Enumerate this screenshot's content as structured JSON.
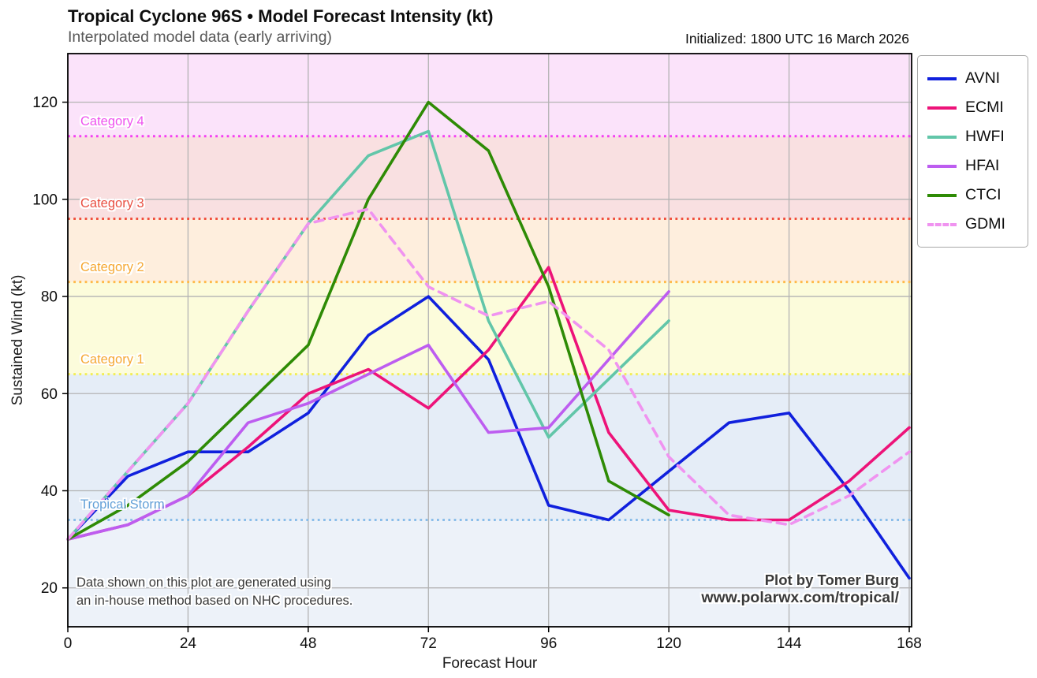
{
  "header": {
    "title": "Tropical Cyclone 96S • Model Forecast Intensity (kt)",
    "subtitle": "Interpolated model data (early arriving)",
    "initialized": "Initialized: 1800 UTC 16 March 2026"
  },
  "annotations": {
    "note_line1": "Data shown on this plot are generated using",
    "note_line2": "an in-house method based on NHC procedures.",
    "credit_line1": "Plot by Tomer Burg",
    "credit_line2": "www.polarwx.com/tropical/"
  },
  "chart_data": {
    "type": "line",
    "title": "Tropical Cyclone 96S • Model Forecast Intensity (kt)",
    "xlabel": "Forecast Hour",
    "ylabel": "Sustained Wind (kt)",
    "xlim": [
      0,
      168
    ],
    "ylim": [
      12,
      130
    ],
    "xticks": [
      0,
      24,
      48,
      72,
      96,
      120,
      144,
      168
    ],
    "yticks": [
      20,
      40,
      60,
      80,
      100,
      120
    ],
    "grid": true,
    "grid_color": "#b3b3b3",
    "legend_position": "outside upper right",
    "series": [
      {
        "name": "AVNI",
        "color": "#1020dd",
        "dash": false,
        "x": [
          0,
          12,
          24,
          36,
          48,
          60,
          72,
          84,
          96,
          108,
          120,
          132,
          144,
          156,
          168
        ],
        "values": [
          30,
          43,
          48,
          48,
          56,
          72,
          80,
          67,
          37,
          34,
          44,
          54,
          56,
          40,
          22
        ]
      },
      {
        "name": "ECMI",
        "color": "#ed1379",
        "dash": false,
        "x": [
          0,
          12,
          24,
          36,
          48,
          60,
          72,
          84,
          96,
          108,
          120,
          132,
          144,
          156,
          168
        ],
        "values": [
          30,
          33,
          39,
          49,
          60,
          65,
          57,
          69,
          86,
          52,
          36,
          34,
          34,
          42,
          53
        ]
      },
      {
        "name": "HWFI",
        "color": "#62c6a9",
        "dash": false,
        "x": [
          0,
          12,
          24,
          36,
          48,
          60,
          72,
          84,
          96,
          108,
          120
        ],
        "values": [
          30,
          44,
          58,
          77,
          95,
          109,
          114,
          75,
          51,
          63,
          75
        ]
      },
      {
        "name": "HFAI",
        "color": "#bd5df0",
        "dash": false,
        "x": [
          0,
          12,
          24,
          36,
          48,
          60,
          72,
          84,
          96,
          108,
          120
        ],
        "values": [
          30,
          33,
          39,
          54,
          58,
          64,
          70,
          52,
          53,
          67,
          81
        ]
      },
      {
        "name": "CTCI",
        "color": "#2e8b05",
        "dash": false,
        "x": [
          0,
          12,
          24,
          36,
          48,
          60,
          72,
          84,
          96,
          108,
          120
        ],
        "values": [
          30,
          37,
          46,
          58,
          70,
          100,
          120,
          110,
          82,
          42,
          35
        ]
      },
      {
        "name": "GDMI",
        "color": "#f093f0",
        "dash": true,
        "x": [
          0,
          12,
          24,
          36,
          48,
          60,
          72,
          84,
          96,
          108,
          120,
          132,
          144,
          156,
          168
        ],
        "values": [
          30,
          44,
          58,
          77,
          95,
          98,
          82,
          76,
          79,
          69,
          47,
          35,
          33,
          39,
          48
        ]
      }
    ],
    "thresholds": [
      {
        "label": "Tropical Storm",
        "value": 34,
        "line_color": "#8abde9",
        "label_color": "#64a1d8"
      },
      {
        "label": "Category 1",
        "value": 64,
        "line_color": "#f2ee55",
        "label_color": "#f6a833"
      },
      {
        "label": "Category 2",
        "value": 83,
        "line_color": "#ffb94a",
        "label_color": "#f6a833"
      },
      {
        "label": "Category 3",
        "value": 96,
        "line_color": "#f05040",
        "label_color": "#e94f41"
      },
      {
        "label": "Category 4",
        "value": 113,
        "line_color": "#f33ff3",
        "label_color": "#ef52ef"
      }
    ],
    "bands": [
      {
        "from": 12,
        "to": 34,
        "color": "#edf2f9"
      },
      {
        "from": 34,
        "to": 64,
        "color": "#e5edf7"
      },
      {
        "from": 64,
        "to": 83,
        "color": "#fcfcdb"
      },
      {
        "from": 83,
        "to": 96,
        "color": "#feeedd"
      },
      {
        "from": 96,
        "to": 113,
        "color": "#f9e0e1"
      },
      {
        "from": 113,
        "to": 130,
        "color": "#fbe3fa"
      }
    ]
  }
}
